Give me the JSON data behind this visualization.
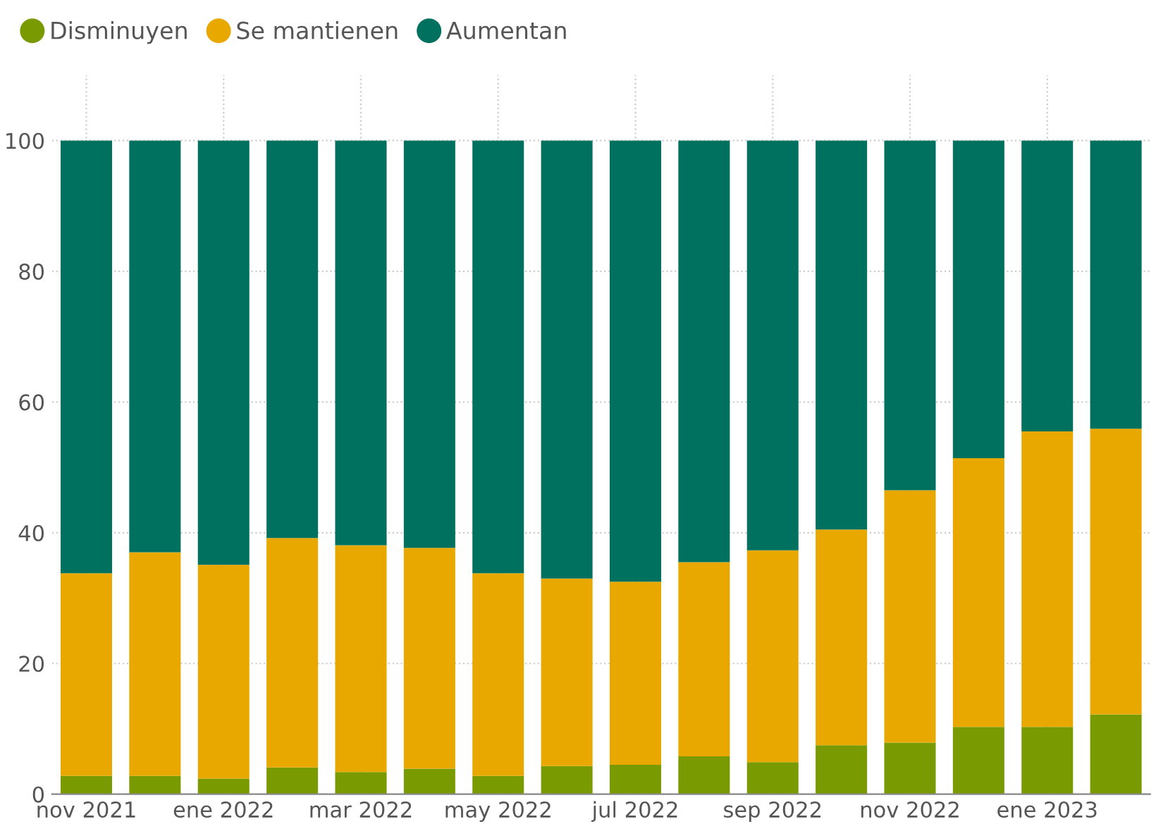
{
  "chart_data": {
    "type": "bar",
    "stacked": true,
    "categories": [
      "nov 2021",
      null,
      "ene 2022",
      null,
      "mar 2022",
      null,
      "may 2022",
      null,
      "jul 2022",
      null,
      "sep 2022",
      null,
      "nov 2022",
      null,
      "ene 2023",
      null
    ],
    "series": [
      {
        "name": "Disminuyen",
        "color": "#7a9a01",
        "values": [
          2.8,
          2.8,
          2.4,
          4.1,
          3.4,
          3.9,
          2.8,
          4.3,
          4.5,
          5.8,
          4.9,
          7.5,
          7.9,
          10.3,
          10.3,
          12.2
        ]
      },
      {
        "name": "Se mantienen",
        "color": "#e8a800",
        "values": [
          31.0,
          34.2,
          32.7,
          35.1,
          34.7,
          33.8,
          31.0,
          28.7,
          28.0,
          29.7,
          32.4,
          33.0,
          38.6,
          41.1,
          45.2,
          43.7
        ]
      },
      {
        "name": "Aumentan",
        "color": "#00705f",
        "values": [
          66.2,
          63.0,
          64.9,
          60.8,
          61.9,
          62.3,
          66.2,
          67.0,
          67.5,
          64.5,
          62.7,
          59.5,
          53.5,
          48.6,
          44.5,
          44.1
        ]
      }
    ],
    "ylim": [
      0,
      110
    ],
    "yticks": [
      0,
      20,
      40,
      60,
      80,
      100
    ],
    "grid": true,
    "legend": "top left",
    "marker": "circle"
  }
}
